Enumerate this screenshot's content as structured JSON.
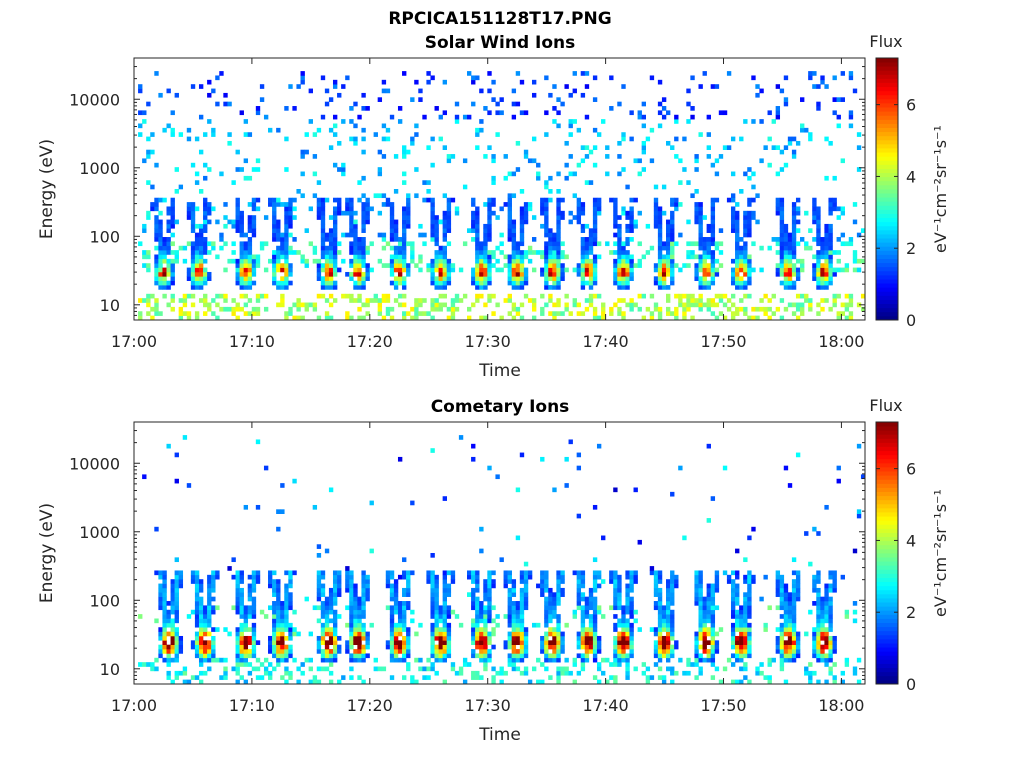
{
  "chart_data": [
    {
      "type": "heatmap",
      "title": "RPCICA151128T17.PNG",
      "subtitle": "Solar Wind Ions",
      "xlabel": "Time",
      "ylabel": "Energy (eV)",
      "x_ticks": [
        "17:00",
        "17:10",
        "17:20",
        "17:30",
        "17:40",
        "17:50",
        "18:00"
      ],
      "y_ticks": [
        "10",
        "100",
        "1000",
        "10000"
      ],
      "y_scale": "log",
      "x_range": [
        "17:00",
        "18:02"
      ],
      "y_range": [
        6,
        40000
      ],
      "colorbar": {
        "label": "Flux",
        "units": "eV⁻¹cm⁻²sr⁻¹s⁻¹",
        "ticks": [
          "0",
          "2",
          "4",
          "6"
        ],
        "range": [
          0,
          7.3
        ],
        "colormap": "jet"
      },
      "bursts_minutes": [
        2.5,
        5.5,
        9.5,
        12.5,
        16.5,
        19,
        22.5,
        26,
        29.5,
        32.5,
        35.5,
        38.5,
        41.5,
        45,
        48.5,
        51.5,
        55.5,
        58.5
      ],
      "burst_peak_energy_eV": 28,
      "peak_flux": 5.0,
      "background": "sparse counts, flux 1-3, 100-20000 eV"
    },
    {
      "type": "heatmap",
      "title": "Cometary Ions",
      "xlabel": "Time",
      "ylabel": "Energy (eV)",
      "x_ticks": [
        "17:00",
        "17:10",
        "17:20",
        "17:30",
        "17:40",
        "17:50",
        "18:00"
      ],
      "y_ticks": [
        "10",
        "100",
        "1000",
        "10000"
      ],
      "y_scale": "log",
      "x_range": [
        "17:00",
        "18:02"
      ],
      "y_range": [
        6,
        40000
      ],
      "colorbar": {
        "label": "Flux",
        "units": "eV⁻¹cm⁻²sr⁻¹s⁻¹",
        "ticks": [
          "0",
          "2",
          "4",
          "6"
        ],
        "range": [
          0,
          7.3
        ],
        "colormap": "jet"
      },
      "bursts_minutes": [
        3,
        6,
        9.5,
        12.5,
        16.5,
        19,
        22.5,
        26,
        29.5,
        32.5,
        35.5,
        38.5,
        41.5,
        45,
        48.5,
        51.5,
        55.5,
        58.5
      ],
      "burst_peak_energy_eV": 22,
      "peak_flux": 6.8,
      "background": "sparse counts, flux 0-2, 100-20000 eV"
    }
  ]
}
